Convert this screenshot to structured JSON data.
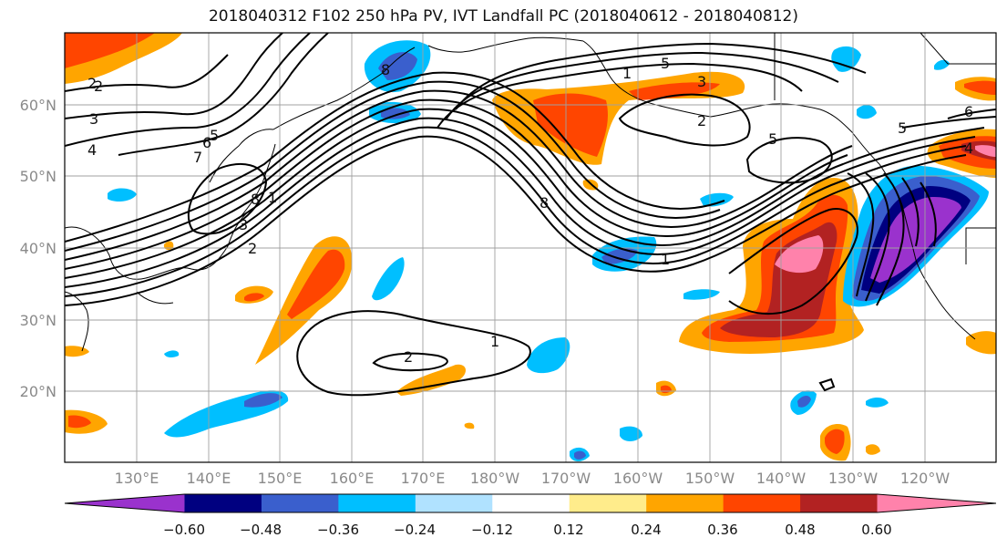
{
  "title": "2018040312 F102 250 hPa PV, IVT Landfall PC (2018040612 - 2018040812)",
  "latitude_labels": [
    "60°N",
    "50°N",
    "40°N",
    "30°N",
    "20°N"
  ],
  "longitude_labels": [
    "130°E",
    "140°E",
    "150°E",
    "160°E",
    "170°E",
    "180°W",
    "170°W",
    "160°W",
    "150°W",
    "140°W",
    "130°W",
    "120°W"
  ],
  "colorbar": {
    "colors": [
      "#9a32cd",
      "#000080",
      "#3a5fcd",
      "#00bfff",
      "#b0e2ff",
      "#ffffff",
      "#ffec8b",
      "#ffa500",
      "#ff4500",
      "#b22222",
      "#ff82ab"
    ],
    "tick_labels": [
      "−0.60",
      "−0.48",
      "−0.36",
      "−0.24",
      "−0.12",
      "0.12",
      "0.24",
      "0.36",
      "0.48",
      "0.60"
    ]
  },
  "contour_labels": [
    "2",
    "3",
    "4",
    "5",
    "6",
    "7",
    "8",
    "1",
    "2",
    "3",
    "8",
    "5",
    "3",
    "2",
    "5",
    "5",
    "6",
    "4",
    "1",
    "1",
    "2",
    "8",
    "1",
    "2"
  ]
}
